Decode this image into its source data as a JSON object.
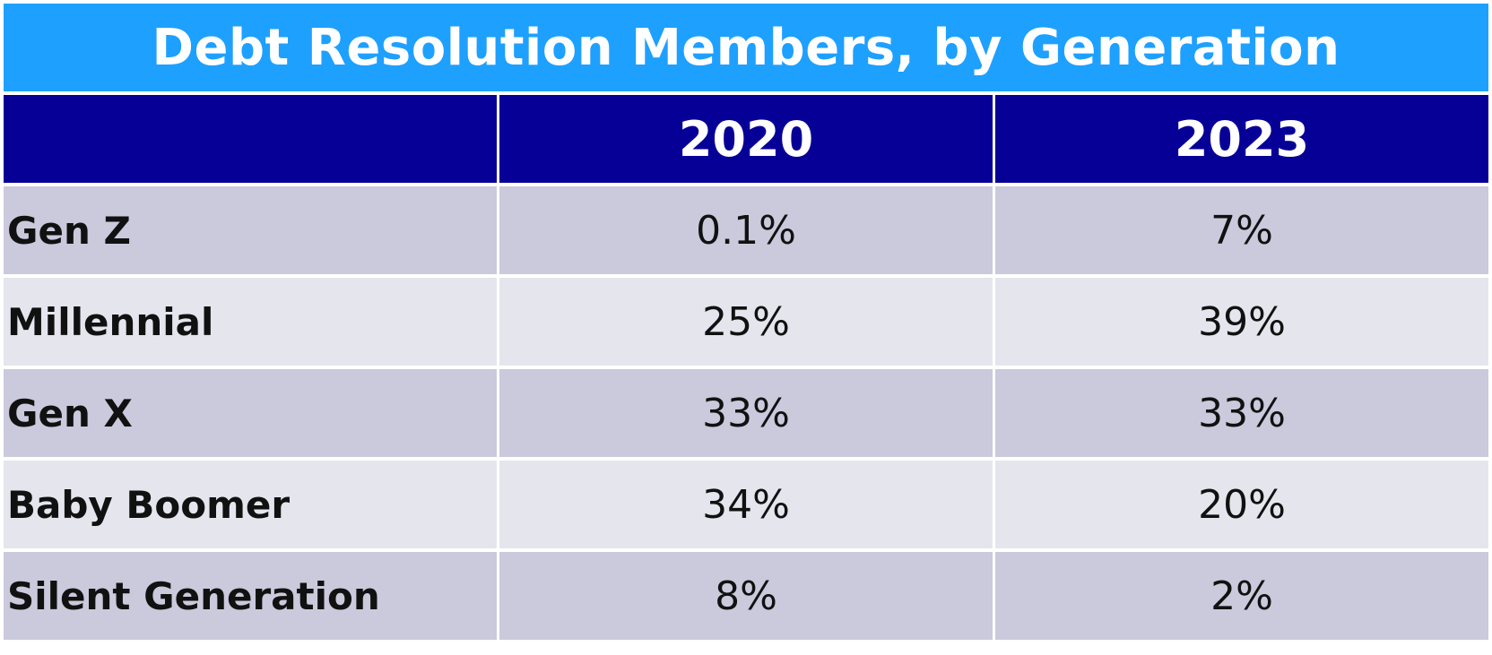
{
  "chart_data": {
    "type": "table",
    "title": "Debt Resolution Members, by Generation",
    "columns": [
      "",
      "2020",
      "2023"
    ],
    "rows": [
      {
        "label": "Gen Z",
        "values": [
          "0.1%",
          "7%"
        ]
      },
      {
        "label": "Millennial",
        "values": [
          "25%",
          "39%"
        ]
      },
      {
        "label": "Gen X",
        "values": [
          "33%",
          "33%"
        ]
      },
      {
        "label": "Baby Boomer",
        "values": [
          "34%",
          "20%"
        ]
      },
      {
        "label": "Silent Generation",
        "values": [
          "8%",
          "2%"
        ]
      }
    ]
  },
  "colors": {
    "title_bg": "#1ea0ff",
    "header_bg": "#070096",
    "row_dark": "#cbc9dc",
    "row_light": "#e5e5ee"
  }
}
